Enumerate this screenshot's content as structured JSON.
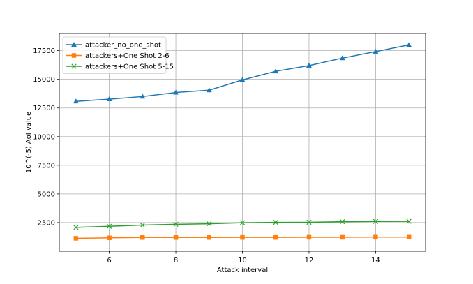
{
  "chart_data": {
    "type": "line",
    "title": "",
    "xlabel": "Attack interval",
    "ylabel": "10^(-5) AoI value",
    "xlim": [
      4.5,
      15.5
    ],
    "ylim": [
      0,
      19000
    ],
    "x_ticks": [
      6,
      8,
      10,
      12,
      14
    ],
    "y_ticks": [
      2500,
      5000,
      7500,
      10000,
      12500,
      15000,
      17500
    ],
    "grid": true,
    "legend_position": "top-left",
    "x": [
      5,
      6,
      7,
      8,
      9,
      10,
      11,
      12,
      13,
      14,
      15
    ],
    "series": [
      {
        "name": "attacker_no_one_shot",
        "color": "#1f77b4",
        "marker": "triangle",
        "values": [
          13080,
          13270,
          13500,
          13850,
          14050,
          14950,
          15700,
          16200,
          16850,
          17420,
          18000
        ]
      },
      {
        "name": "attackers+One Shot 2-6",
        "color": "#ff7f0e",
        "marker": "square",
        "values": [
          1130,
          1170,
          1200,
          1200,
          1200,
          1210,
          1210,
          1220,
          1220,
          1230,
          1230
        ]
      },
      {
        "name": "attackers+One Shot 5-15",
        "color": "#2ca02c",
        "marker": "x",
        "values": [
          2080,
          2180,
          2280,
          2350,
          2400,
          2490,
          2520,
          2530,
          2580,
          2600,
          2610
        ]
      }
    ]
  }
}
